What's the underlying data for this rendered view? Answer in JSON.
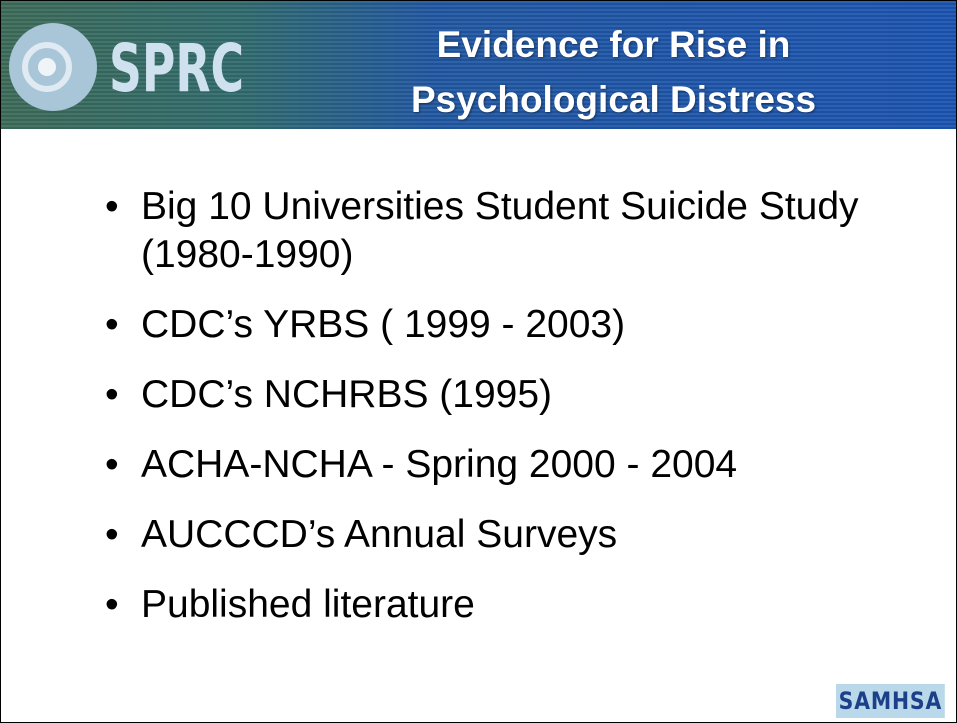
{
  "header": {
    "logo": "SPRC",
    "title": [
      "Evidence for Rise in",
      "Psychological Distress"
    ]
  },
  "bullets": [
    "Big 10 Universities Student Suicide Study (1980-1990)",
    "CDC’s YRBS ( 1999 - 2003)",
    "CDC’s NCHRBS (1995)",
    "ACHA-NCHA -  Spring 2000 - 2004",
    "AUCCCD’s Annual Surveys",
    "Published literature"
  ],
  "footer": {
    "logo": "SAMHSA"
  }
}
